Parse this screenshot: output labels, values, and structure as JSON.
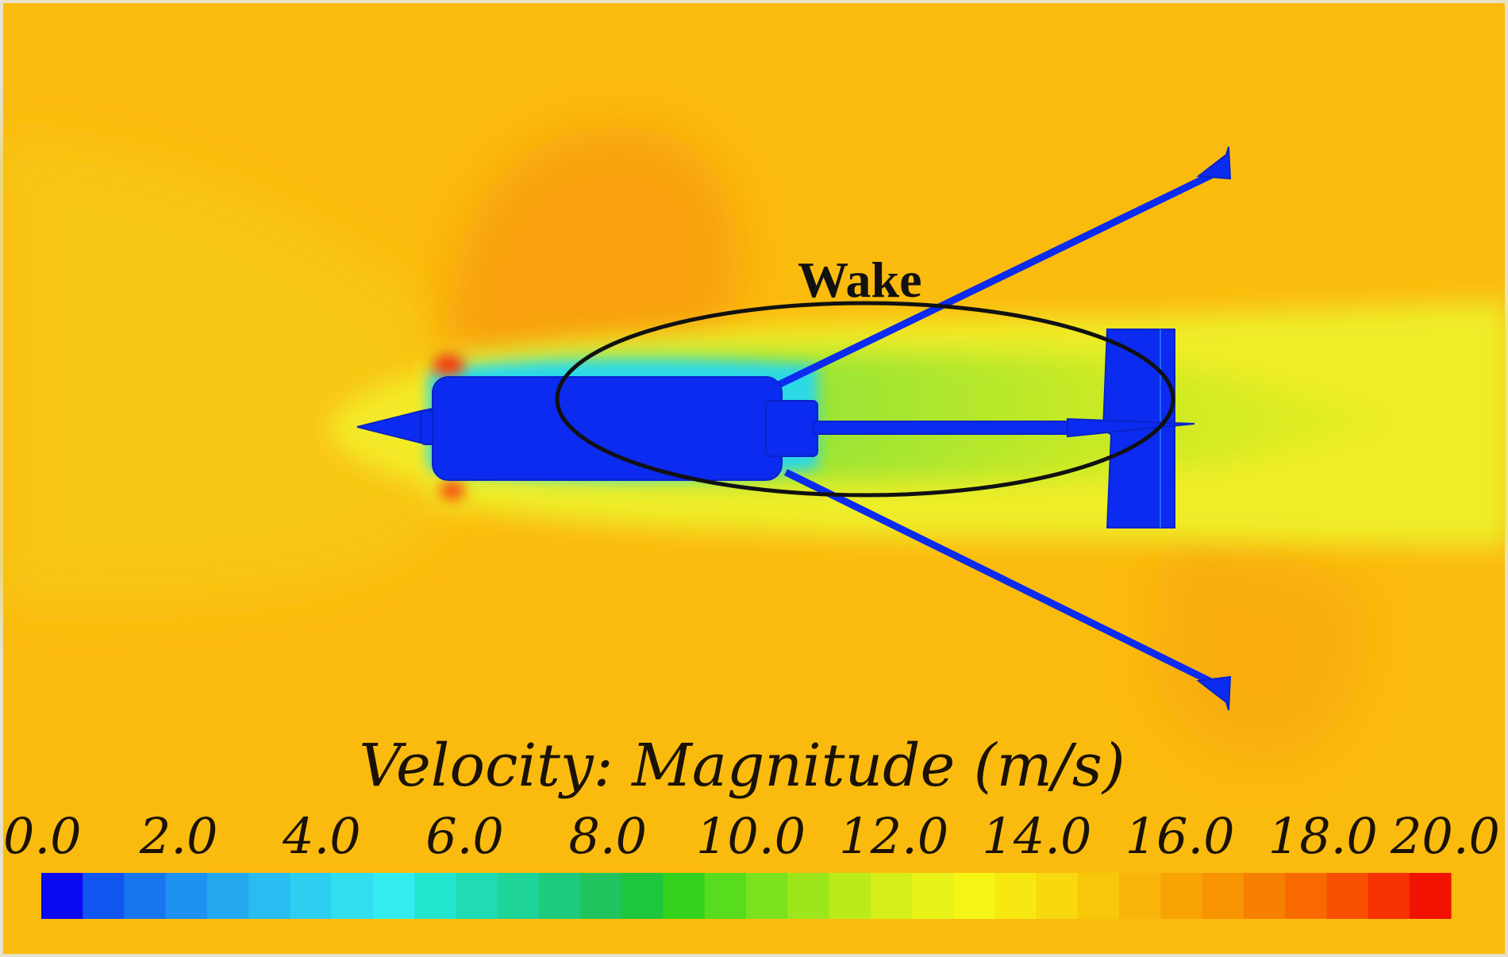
{
  "figure": {
    "annotation": "Wake",
    "colorbar": {
      "title": "Velocity: Magnitude (m/s)",
      "min": 0.0,
      "max": 20.0,
      "tick_labels": [
        "0.0",
        "2.0",
        "4.0",
        "6.0",
        "8.0",
        "10.0",
        "12.0",
        "14.0",
        "16.0",
        "18.0",
        "20.0"
      ],
      "swatches": [
        "#0a0af0",
        "#1156f0",
        "#1877f0",
        "#1e92f0",
        "#24a8f0",
        "#29bcf0",
        "#2ecef0",
        "#31def0",
        "#33ecf0",
        "#22e6d0",
        "#1fdcb4",
        "#1ed498",
        "#1ecb7c",
        "#20c35e",
        "#1ec63e",
        "#34d21e",
        "#58dc1e",
        "#7be21e",
        "#9ee61c",
        "#bbea1a",
        "#d4ee18",
        "#e8f218",
        "#f5f516",
        "#f7e812",
        "#f8d80e",
        "#f8c70a",
        "#f8b408",
        "#f8a405",
        "#f89302",
        "#f88000",
        "#f86a00",
        "#f85000",
        "#f83200",
        "#f21200"
      ]
    },
    "colors": {
      "freestream": "#fbbb0e",
      "body": "#0b2bf0",
      "wake_core": "#c6ea22",
      "stagnation_high": "#f53a10"
    }
  }
}
